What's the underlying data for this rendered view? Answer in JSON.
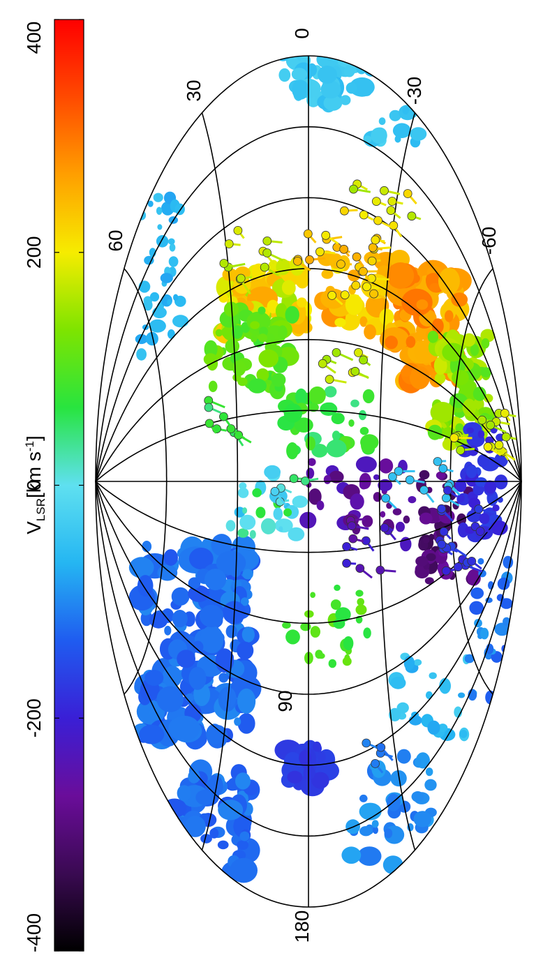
{
  "colorbar": {
    "label_main": "V",
    "label_sub": "LSR",
    "label_units": "[km s",
    "label_exp": "-1",
    "label_close": "]",
    "ticks": [
      "-400",
      "-200",
      "0",
      "200",
      "400"
    ],
    "range": [
      -400,
      400
    ],
    "stops": [
      "#000000",
      "#3a0a52",
      "#6a0d9a",
      "#3a1fd6",
      "#1f5cf0",
      "#25b6f2",
      "#5fe0f0",
      "#28e43f",
      "#7ee400",
      "#f6ec00",
      "#ff9f00",
      "#ff4a00",
      "#ff0000",
      "#c0c0c0"
    ]
  },
  "map": {
    "projection": "aitoff",
    "orientation": "rotated 90 degrees counterclockwise",
    "longitude_labels": [
      "180",
      "90",
      "0"
    ],
    "latitude_labels": [
      "60",
      "30",
      "-30",
      "-60"
    ]
  }
}
